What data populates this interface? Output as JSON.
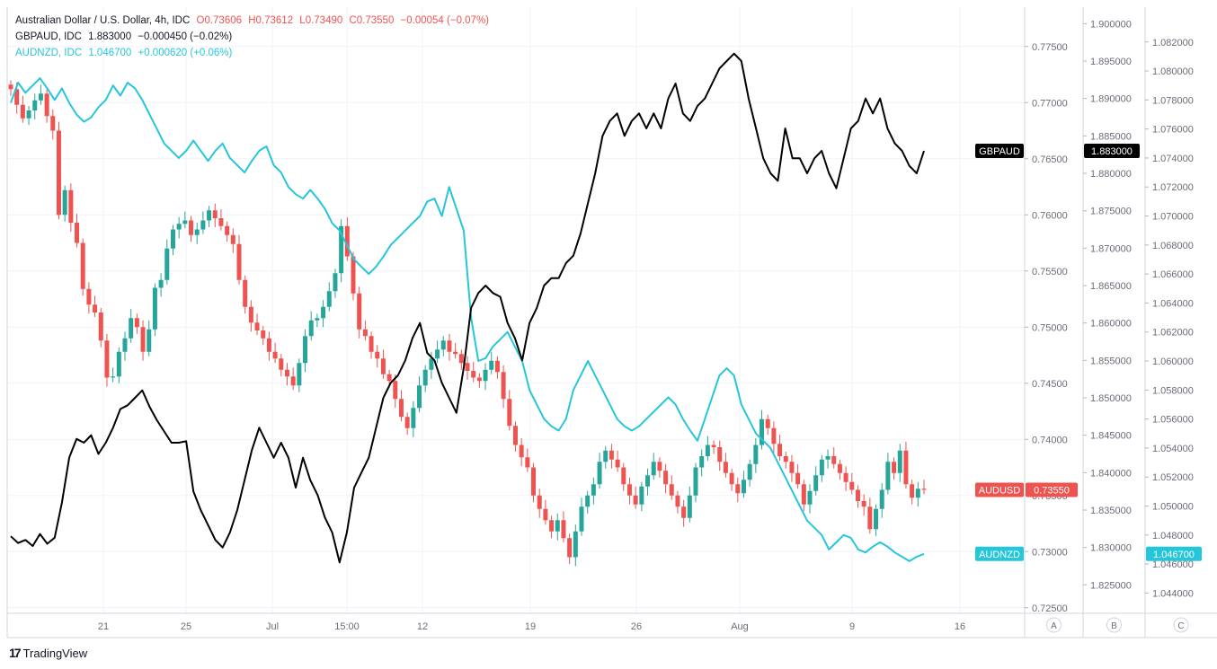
{
  "legend": {
    "main": {
      "symbol": "Australian Dollar / U.S. Dollar, 4h, IDC",
      "o": "O0.73606",
      "h": "H0.73612",
      "l": "L0.73490",
      "c": "C0.73550",
      "change": "−0.00054 (−0.07%)"
    },
    "gbpaud": {
      "label": "GBPAUD, IDC",
      "value": "1.883000",
      "change": "−0.000450 (−0.02%)"
    },
    "audnzd": {
      "label": "AUDNZD, IDC",
      "value": "1.046700",
      "change": "+0.000620 (+0.06%)"
    }
  },
  "brand": "TradingView",
  "colors": {
    "up": "#26a69a",
    "down": "#ef5350",
    "gbpaud": "#000000",
    "audnzd": "#26c6da",
    "grid": "#f0f3fa",
    "axis_text": "#6a6d78"
  },
  "chart_data": {
    "type": "line",
    "title": "Australian Dollar / U.S. Dollar, 4h, IDC",
    "x_ticks": [
      "21",
      "25",
      "Jul",
      "15:00",
      "12",
      "19",
      "26",
      "Aug",
      "9",
      "16"
    ],
    "axis_a": {
      "ticks": [
        "0.77500",
        "0.77000",
        "0.76500",
        "0.76000",
        "0.75500",
        "0.75000",
        "0.74500",
        "0.74000",
        "0.73500",
        "0.73000",
        "0.72500"
      ],
      "ylim": [
        0.7245,
        0.7785
      ]
    },
    "axis_b": {
      "ticks": [
        "1.900000",
        "1.895000",
        "1.890000",
        "1.885000",
        "1.880000",
        "1.875000",
        "1.870000",
        "1.865000",
        "1.860000",
        "1.855000",
        "1.850000",
        "1.845000",
        "1.840000",
        "1.835000",
        "1.830000",
        "1.825000"
      ],
      "ylim": [
        1.8212,
        1.9022
      ]
    },
    "axis_c": {
      "ticks": [
        "1.082000",
        "1.080000",
        "1.078000",
        "1.076000",
        "1.074000",
        "1.072000",
        "1.070000",
        "1.068000",
        "1.066000",
        "1.064000",
        "1.062000",
        "1.060000",
        "1.058000",
        "1.056000",
        "1.054000",
        "1.052000",
        "1.050000",
        "1.048000",
        "1.046000",
        "1.044000"
      ],
      "ylim": [
        1.0426,
        1.0844
      ]
    },
    "axis_letters": [
      "A",
      "B",
      "C"
    ],
    "price_labels": [
      {
        "name": "GBPAUD",
        "value": "1.883000"
      },
      {
        "name": "AUDUSD",
        "value": "0.73550"
      },
      {
        "name": "AUDNZD",
        "value": "1.046700"
      }
    ],
    "audusd_close": [
      0.7712,
      0.7698,
      0.7686,
      0.7693,
      0.7702,
      0.7708,
      0.7688,
      0.7675,
      0.76,
      0.7622,
      0.7593,
      0.7575,
      0.7534,
      0.752,
      0.7513,
      0.7488,
      0.7455,
      0.7456,
      0.7478,
      0.749,
      0.7508,
      0.75,
      0.7478,
      0.7498,
      0.7535,
      0.7542,
      0.757,
      0.7587,
      0.7592,
      0.7595,
      0.7582,
      0.7587,
      0.7595,
      0.7604,
      0.7597,
      0.759,
      0.7582,
      0.7574,
      0.7542,
      0.7518,
      0.7504,
      0.7497,
      0.749,
      0.7478,
      0.7472,
      0.7462,
      0.7456,
      0.7448,
      0.7468,
      0.7492,
      0.7506,
      0.7508,
      0.7518,
      0.7532,
      0.7548,
      0.759,
      0.7563,
      0.753,
      0.7498,
      0.7492,
      0.7478,
      0.7472,
      0.7458,
      0.7452,
      0.7436,
      0.742,
      0.741,
      0.7428,
      0.7448,
      0.7462,
      0.7472,
      0.748,
      0.7488,
      0.7478,
      0.7476,
      0.7468,
      0.7461,
      0.7455,
      0.7452,
      0.7462,
      0.747,
      0.746,
      0.7436,
      0.7412,
      0.7395,
      0.7384,
      0.7375,
      0.735,
      0.7338,
      0.7328,
      0.7318,
      0.7328,
      0.7312,
      0.7295,
      0.7318,
      0.734,
      0.735,
      0.736,
      0.738,
      0.739,
      0.7382,
      0.7375,
      0.736,
      0.735,
      0.7342,
      0.7358,
      0.7368,
      0.738,
      0.7372,
      0.736,
      0.735,
      0.734,
      0.733,
      0.735,
      0.7375,
      0.7385,
      0.7395,
      0.7393,
      0.738,
      0.737,
      0.736,
      0.7352,
      0.7364,
      0.7378,
      0.7395,
      0.7418,
      0.741,
      0.7396,
      0.7385,
      0.738,
      0.737,
      0.736,
      0.7342,
      0.7354,
      0.7368,
      0.7382,
      0.7385,
      0.7378,
      0.737,
      0.7362,
      0.7355,
      0.7345,
      0.734,
      0.732,
      0.7338,
      0.7355,
      0.738,
      0.737,
      0.739,
      0.736,
      0.7348,
      0.7356,
      0.7355
    ],
    "gbpaud": [
      1.8315,
      1.8306,
      1.831,
      1.8302,
      1.8318,
      1.8305,
      1.8313,
      1.836,
      1.842,
      1.8445,
      1.844,
      1.845,
      1.8425,
      1.844,
      1.846,
      1.8485,
      1.849,
      1.85,
      1.851,
      1.8488,
      1.847,
      1.8455,
      1.844,
      1.844,
      1.8442,
      1.8375,
      1.835,
      1.833,
      1.831,
      1.83,
      1.832,
      1.835,
      1.839,
      1.843,
      1.846,
      1.844,
      1.842,
      1.844,
      1.842,
      1.838,
      1.842,
      1.839,
      1.837,
      1.834,
      1.832,
      1.828,
      1.832,
      1.838,
      1.84,
      1.842,
      1.846,
      1.85,
      1.852,
      1.853,
      1.855,
      1.858,
      1.86,
      1.856,
      1.855,
      1.852,
      1.85,
      1.848,
      1.854,
      1.862,
      1.864,
      1.865,
      1.864,
      1.8635,
      1.86,
      1.858,
      1.855,
      1.86,
      1.862,
      1.865,
      1.866,
      1.866,
      1.868,
      1.869,
      1.872,
      1.876,
      1.88,
      1.885,
      1.887,
      1.888,
      1.885,
      1.887,
      1.888,
      1.886,
      1.888,
      1.886,
      1.89,
      1.892,
      1.888,
      1.887,
      1.889,
      1.89,
      1.892,
      1.894,
      1.895,
      1.896,
      1.895,
      1.89,
      1.886,
      1.882,
      1.88,
      1.879,
      1.886,
      1.882,
      1.882,
      1.88,
      1.882,
      1.883,
      1.88,
      1.878,
      1.882,
      1.886,
      1.887,
      1.89,
      1.888,
      1.89,
      1.886,
      1.884,
      1.883,
      1.881,
      1.88,
      1.883
    ],
    "audnzd": [
      1.0778,
      1.0792,
      1.0785,
      1.079,
      1.0795,
      1.0788,
      1.078,
      1.0788,
      1.0778,
      1.077,
      1.0765,
      1.0768,
      1.0775,
      1.078,
      1.079,
      1.0783,
      1.0792,
      1.0788,
      1.078,
      1.077,
      1.076,
      1.075,
      1.0745,
      1.074,
      1.0745,
      1.0752,
      1.0745,
      1.0738,
      1.0745,
      1.075,
      1.074,
      1.0735,
      1.073,
      1.0738,
      1.0745,
      1.0748,
      1.0735,
      1.073,
      1.072,
      1.0715,
      1.0712,
      1.0718,
      1.0712,
      1.0705,
      1.0695,
      1.069,
      1.068,
      1.067,
      1.0665,
      1.066,
      1.0665,
      1.0672,
      1.068,
      1.0685,
      1.069,
      1.0695,
      1.07,
      1.071,
      1.0712,
      1.07,
      1.072,
      1.0705,
      1.069,
      1.063,
      1.06,
      1.0602,
      1.061,
      1.0615,
      1.062,
      1.061,
      1.06,
      1.058,
      1.057,
      1.056,
      1.0555,
      1.0552,
      1.056,
      1.058,
      1.059,
      1.06,
      1.059,
      1.058,
      1.057,
      1.056,
      1.0555,
      1.0552,
      1.0555,
      1.056,
      1.0565,
      1.057,
      1.0575,
      1.057,
      1.056,
      1.0552,
      1.0545,
      1.056,
      1.0575,
      1.059,
      1.0595,
      1.059,
      1.057,
      1.056,
      1.055,
      1.0545,
      1.054,
      1.053,
      1.052,
      1.051,
      1.05,
      1.049,
      1.0485,
      1.048,
      1.047,
      1.0475,
      1.048,
      1.0478,
      1.047,
      1.0468,
      1.0472,
      1.0475,
      1.0472,
      1.0468,
      1.0465,
      1.0462,
      1.0465,
      1.0467
    ]
  }
}
